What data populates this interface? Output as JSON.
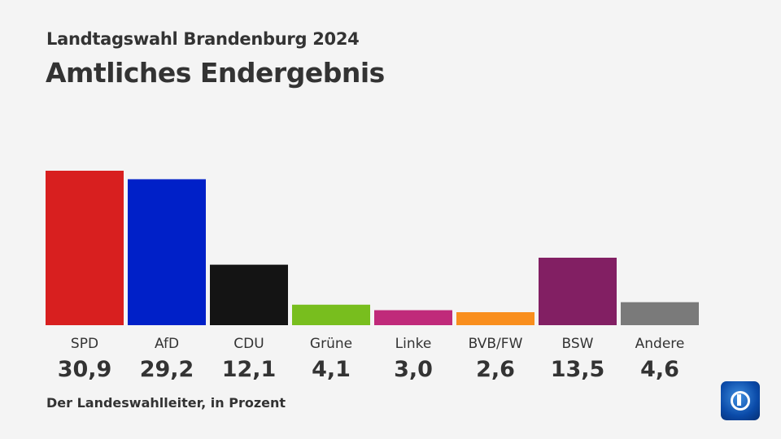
{
  "header": {
    "subtitle": "Landtagswahl Brandenburg 2024",
    "title": "Amtliches Endergebnis"
  },
  "footer": {
    "source": "Der Landeswahlleiter, in Prozent"
  },
  "logo": {
    "name": "tagesschau-logo",
    "text": "1"
  },
  "chart_data": {
    "type": "bar",
    "categories": [
      "SPD",
      "AfD",
      "CDU",
      "Grüne",
      "Linke",
      "BVB/FW",
      "BSW",
      "Andere"
    ],
    "values": [
      30.9,
      29.2,
      12.1,
      4.1,
      3.0,
      2.6,
      13.5,
      4.6
    ],
    "value_labels": [
      "30,9",
      "29,2",
      "12,1",
      "4,1",
      "3,0",
      "2,6",
      "13,5",
      "4,6"
    ],
    "colors": [
      "#d81f1f",
      "#0020c8",
      "#141414",
      "#78be1e",
      "#c02a7a",
      "#f98e1d",
      "#821f63",
      "#7a7a7a"
    ],
    "ylim": [
      0,
      31
    ],
    "grid": false,
    "legend": "none"
  }
}
